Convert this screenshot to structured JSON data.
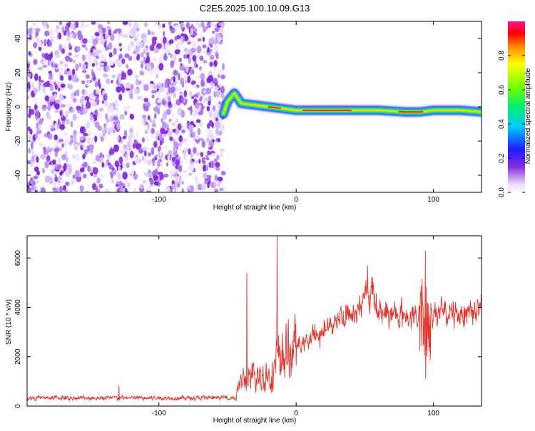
{
  "title": "C2E5.2025.100.10.09.G13",
  "colors": {
    "noise": "#8a2be2",
    "snr_line": "#e8332a",
    "axis": "#000000"
  },
  "chart_data": [
    {
      "type": "heatmap",
      "title": "C2E5.2025.100.10.09.G13",
      "xlabel": "Height of straight line (km)",
      "ylabel": "Frequency (Hz)",
      "xlim": [
        -196,
        135
      ],
      "ylim": [
        -50,
        50
      ],
      "x_ticks": [
        -100,
        0,
        100
      ],
      "x_tick_labels": [
        "-100",
        "0",
        "100"
      ],
      "y_ticks": [
        -40,
        -20,
        0,
        20,
        40
      ],
      "y_tick_labels": [
        "-40",
        "-20",
        "0",
        "20",
        "40"
      ],
      "colorbar": {
        "label": "Normalized spectral amplitude",
        "range": [
          0,
          1
        ],
        "ticks": [
          0,
          0.2,
          0.4,
          0.6,
          0.8
        ],
        "tick_labels": [
          "0.0",
          "0.2",
          "0.4",
          "0.6",
          "0.8"
        ]
      },
      "noise_region_x": [
        -196,
        -53
      ],
      "signal_track": [
        {
          "x": -53,
          "f": -4
        },
        {
          "x": -50,
          "f": 3
        },
        {
          "x": -45,
          "f": 8
        },
        {
          "x": -40,
          "f": 2
        },
        {
          "x": -30,
          "f": 1
        },
        {
          "x": -20,
          "f": 0
        },
        {
          "x": -10,
          "f": -1
        },
        {
          "x": 0,
          "f": -2
        },
        {
          "x": 10,
          "f": -2
        },
        {
          "x": 20,
          "f": -2
        },
        {
          "x": 40,
          "f": -2
        },
        {
          "x": 60,
          "f": -2
        },
        {
          "x": 80,
          "f": -3
        },
        {
          "x": 90,
          "f": -3
        },
        {
          "x": 100,
          "f": -2
        },
        {
          "x": 120,
          "f": -2
        },
        {
          "x": 135,
          "f": -3
        }
      ]
    },
    {
      "type": "line",
      "xlabel": "Height of straight line (km)",
      "ylabel": "SNR (10 * v/v)",
      "xlim": [
        -196,
        135
      ],
      "ylim": [
        0,
        6900
      ],
      "x_ticks": [
        -100,
        0,
        100
      ],
      "x_tick_labels": [
        "-100",
        "0",
        "100"
      ],
      "y_ticks": [
        0,
        2000,
        4000,
        6000
      ],
      "y_tick_labels": [
        "0",
        "2000",
        "4000",
        "6000"
      ],
      "trend": [
        {
          "x": -196,
          "y": 330
        },
        {
          "x": -130,
          "y": 330
        },
        {
          "x": -60,
          "y": 330
        },
        {
          "x": -44,
          "y": 350
        },
        {
          "x": -40,
          "y": 1000
        },
        {
          "x": -30,
          "y": 1100
        },
        {
          "x": -20,
          "y": 1300
        },
        {
          "x": -10,
          "y": 2000
        },
        {
          "x": 0,
          "y": 2400
        },
        {
          "x": 10,
          "y": 2700
        },
        {
          "x": 20,
          "y": 3000
        },
        {
          "x": 30,
          "y": 3600
        },
        {
          "x": 40,
          "y": 3700
        },
        {
          "x": 50,
          "y": 4300
        },
        {
          "x": 55,
          "y": 4700
        },
        {
          "x": 60,
          "y": 3900
        },
        {
          "x": 70,
          "y": 3700
        },
        {
          "x": 80,
          "y": 3700
        },
        {
          "x": 88,
          "y": 3600
        },
        {
          "x": 95,
          "y": 3500
        },
        {
          "x": 100,
          "y": 3800
        },
        {
          "x": 110,
          "y": 3700
        },
        {
          "x": 120,
          "y": 3800
        },
        {
          "x": 135,
          "y": 4000
        }
      ],
      "spikes": [
        {
          "x": -129,
          "y": 830
        },
        {
          "x": -36,
          "y": 5400
        },
        {
          "x": -14,
          "y": 6900
        },
        {
          "x": 52,
          "y": 5700
        },
        {
          "x": 94,
          "y": 6300
        },
        {
          "x": 94,
          "y": 1100
        }
      ]
    }
  ]
}
